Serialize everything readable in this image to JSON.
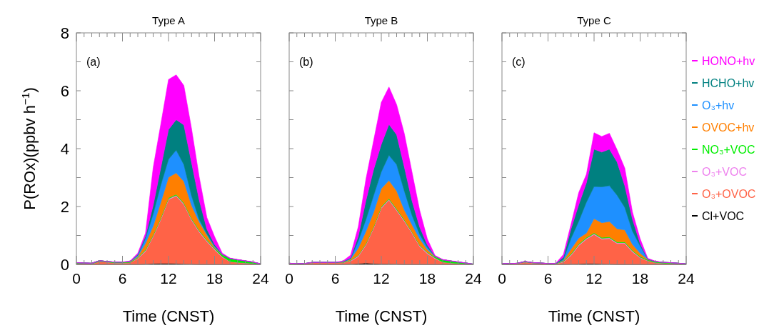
{
  "chart_data": [
    {
      "type": "area",
      "stacked": true,
      "title": "Type A",
      "xlabel": "Time (CNST)",
      "ylabel": "P(ROx)(ppbv h$^{−1}$)",
      "annotations": [
        "(a)"
      ],
      "x": [
        0,
        1,
        2,
        3,
        4,
        5,
        6,
        7,
        8,
        9,
        10,
        11,
        12,
        13,
        14,
        15,
        16,
        17,
        18,
        19,
        20,
        21,
        22,
        23,
        24
      ],
      "xlim": [
        0,
        24
      ],
      "xticks": [
        0,
        {
          "value": 1,
          "label": null
        },
        {
          "value": 2,
          "label": null
        },
        {
          "value": 3,
          "label": null
        },
        {
          "value": 4,
          "label": null
        },
        {
          "value": 5,
          "label": null
        },
        6,
        {
          "value": 7,
          "label": null
        },
        {
          "value": 8,
          "label": null
        },
        {
          "value": 9,
          "label": null
        },
        {
          "value": 10,
          "label": null
        },
        {
          "value": 11,
          "label": null
        },
        12,
        {
          "value": 13,
          "label": null
        },
        {
          "value": 14,
          "label": null
        },
        {
          "value": 15,
          "label": null
        },
        {
          "value": 16,
          "label": null
        },
        {
          "value": 17,
          "label": null
        },
        18,
        {
          "value": 19,
          "label": null
        },
        {
          "value": 20,
          "label": null
        },
        {
          "value": 21,
          "label": null
        },
        {
          "value": 22,
          "label": null
        },
        {
          "value": 23,
          "label": null
        },
        24
      ],
      "ylim": [
        0,
        8
      ],
      "yticks": [
        0,
        {
          "value": 1,
          "label": null
        },
        2,
        {
          "value": 3,
          "label": null
        },
        4,
        {
          "value": 5,
          "label": null
        },
        6,
        {
          "value": 7,
          "label": null
        },
        8
      ],
      "series": [
        {
          "color": "#000000",
          "values": [
            0,
            0,
            0,
            0,
            0,
            0,
            0,
            0,
            0,
            0.01,
            0.03,
            0.04,
            0.04,
            0.03,
            0.02,
            0.01,
            0,
            0,
            0,
            0,
            0,
            0,
            0,
            0,
            0
          ]
        },
        {
          "color": "#ff6347",
          "values": [
            0.03,
            0.03,
            0.02,
            0.1,
            0.08,
            0.05,
            0.05,
            0.06,
            0.2,
            0.44,
            0.93,
            1.51,
            2.2,
            2.33,
            2.05,
            1.52,
            1.12,
            0.79,
            0.5,
            0.25,
            0.1,
            0.07,
            0.05,
            0.03,
            0
          ]
        },
        {
          "color": "#ee82ee",
          "values": [
            0,
            0,
            0,
            0,
            0,
            0,
            0,
            0,
            0.02,
            0.03,
            0.03,
            0.03,
            0.03,
            0.03,
            0.03,
            0.03,
            0.03,
            0.03,
            0.03,
            0.02,
            0,
            0,
            0,
            0,
            0
          ]
        },
        {
          "color": "#00ee00",
          "values": [
            0.03,
            0.02,
            0.02,
            0.03,
            0.02,
            0.03,
            0.03,
            0.02,
            0.02,
            0.03,
            0.03,
            0.03,
            0.03,
            0.03,
            0.03,
            0.03,
            0.03,
            0.03,
            0.03,
            0.06,
            0.1,
            0.09,
            0.07,
            0.05,
            0.02
          ]
        },
        {
          "color": "#ff7f00",
          "values": [
            0,
            0,
            0,
            0,
            0,
            0,
            0,
            0.01,
            0.03,
            0.22,
            0.3,
            0.54,
            0.71,
            0.74,
            0.74,
            0.45,
            0.29,
            0.17,
            0.03,
            0.01,
            0,
            0,
            0,
            0,
            0
          ]
        },
        {
          "color": "#1e90ff",
          "values": [
            0,
            0,
            0,
            0,
            0,
            0,
            0,
            0.01,
            0.05,
            0.17,
            0.42,
            0.6,
            0.62,
            0.79,
            0.58,
            0.33,
            0.08,
            0.03,
            0.04,
            0.01,
            0,
            0,
            0,
            0,
            0
          ]
        },
        {
          "color": "#008080",
          "values": [
            0,
            0,
            0,
            0,
            0,
            0,
            0,
            0,
            0.03,
            0.08,
            0.3,
            0.6,
            1.03,
            1.05,
            1.37,
            1.15,
            0.67,
            0.17,
            0.06,
            0.01,
            0.01,
            0,
            0,
            0,
            0
          ]
        },
        {
          "color": "#ff00ff",
          "values": [
            0,
            0,
            0,
            0,
            0,
            0,
            0,
            0.02,
            0.04,
            0.1,
            1.3,
            1.5,
            1.73,
            1.55,
            1.36,
            1.17,
            0.8,
            0.4,
            0.27,
            0.03,
            0.01,
            0.01,
            0.01,
            0.01,
            0
          ]
        }
      ]
    },
    {
      "type": "area",
      "stacked": true,
      "title": "Type B",
      "xlabel": "Time (CNST)",
      "annotations": [
        "(b)"
      ],
      "tick_labels": "x",
      "x": [
        0,
        1,
        2,
        3,
        4,
        5,
        6,
        7,
        8,
        9,
        10,
        11,
        12,
        13,
        14,
        15,
        16,
        17,
        18,
        19,
        20,
        21,
        22,
        23,
        24
      ],
      "xlim": [
        0,
        24
      ],
      "xticks": [
        0,
        {
          "value": 1,
          "label": null
        },
        {
          "value": 2,
          "label": null
        },
        {
          "value": 3,
          "label": null
        },
        {
          "value": 4,
          "label": null
        },
        {
          "value": 5,
          "label": null
        },
        6,
        {
          "value": 7,
          "label": null
        },
        {
          "value": 8,
          "label": null
        },
        {
          "value": 9,
          "label": null
        },
        {
          "value": 10,
          "label": null
        },
        {
          "value": 11,
          "label": null
        },
        12,
        {
          "value": 13,
          "label": null
        },
        {
          "value": 14,
          "label": null
        },
        {
          "value": 15,
          "label": null
        },
        {
          "value": 16,
          "label": null
        },
        {
          "value": 17,
          "label": null
        },
        18,
        {
          "value": 19,
          "label": null
        },
        {
          "value": 20,
          "label": null
        },
        {
          "value": 21,
          "label": null
        },
        {
          "value": 22,
          "label": null
        },
        {
          "value": 23,
          "label": null
        },
        24
      ],
      "ylim": [
        0,
        8
      ],
      "yticks": [
        0,
        {
          "value": 1,
          "label": null
        },
        2,
        {
          "value": 3,
          "label": null
        },
        4,
        {
          "value": 5,
          "label": null
        },
        6,
        {
          "value": 7,
          "label": null
        },
        8
      ],
      "series": [
        {
          "color": "#000000",
          "values": [
            0,
            0,
            0,
            0,
            0,
            0,
            0,
            0,
            0.01,
            0.03,
            0.05,
            0.03,
            0.02,
            0.02,
            0.01,
            0,
            0,
            0,
            0,
            0,
            0,
            0,
            0,
            0,
            0
          ]
        },
        {
          "color": "#ff6347",
          "values": [
            0.02,
            0.02,
            0.02,
            0.06,
            0.06,
            0.06,
            0.06,
            0.06,
            0.1,
            0.24,
            0.62,
            1.22,
            1.92,
            2.2,
            1.85,
            1.49,
            1.08,
            0.62,
            0.37,
            0.2,
            0.08,
            0.05,
            0.03,
            0.02,
            0
          ]
        },
        {
          "color": "#ee82ee",
          "values": [
            0,
            0,
            0,
            0,
            0,
            0,
            0,
            0,
            0.02,
            0.03,
            0.03,
            0.03,
            0.03,
            0.03,
            0.03,
            0.03,
            0.03,
            0.03,
            0.03,
            0.02,
            0,
            0,
            0,
            0,
            0
          ]
        },
        {
          "color": "#00ee00",
          "values": [
            0.02,
            0.01,
            0.01,
            0.01,
            0.01,
            0.01,
            0.01,
            0.01,
            0.02,
            0.02,
            0.02,
            0.02,
            0.03,
            0.03,
            0.03,
            0.03,
            0.02,
            0.02,
            0.02,
            0.04,
            0.08,
            0.07,
            0.05,
            0.03,
            0.01
          ]
        },
        {
          "color": "#ff7f00",
          "values": [
            0,
            0,
            0,
            0,
            0,
            0,
            0,
            0.01,
            0.03,
            0.24,
            0.42,
            0.5,
            0.62,
            0.62,
            0.62,
            0.33,
            0.24,
            0.21,
            0.09,
            0.01,
            0,
            0,
            0,
            0,
            0
          ]
        },
        {
          "color": "#1e90ff",
          "values": [
            0,
            0,
            0,
            0,
            0,
            0,
            0,
            0.01,
            0.02,
            0.25,
            0.41,
            0.58,
            0.58,
            0.87,
            0.91,
            0.66,
            0.33,
            0.16,
            0.08,
            0.01,
            0,
            0,
            0,
            0,
            0
          ]
        },
        {
          "color": "#008080",
          "values": [
            0,
            0,
            0,
            0,
            0,
            0,
            0,
            0.01,
            0.03,
            0.16,
            0.66,
            0.9,
            0.95,
            1.07,
            1.03,
            0.83,
            0.5,
            0.25,
            0.08,
            0.01,
            0,
            0,
            0,
            0,
            0
          ]
        },
        {
          "color": "#ff00ff",
          "values": [
            0,
            0,
            0,
            0,
            0,
            0,
            0,
            0.02,
            0.09,
            0.33,
            0.74,
            1.0,
            1.45,
            1.29,
            1.04,
            1.15,
            0.99,
            0.58,
            0.21,
            0.02,
            0.01,
            0.01,
            0.01,
            0,
            0
          ]
        }
      ]
    },
    {
      "type": "area",
      "stacked": true,
      "title": "Type C",
      "xlabel": "Time (CNST)",
      "annotations": [
        "(c)"
      ],
      "tick_labels": "x",
      "legend": "right",
      "x": [
        0,
        1,
        2,
        3,
        4,
        5,
        6,
        7,
        8,
        9,
        10,
        11,
        12,
        13,
        14,
        15,
        16,
        17,
        18,
        19,
        20,
        21,
        22,
        23,
        24
      ],
      "xlim": [
        0,
        24
      ],
      "xticks": [
        0,
        {
          "value": 1,
          "label": null
        },
        {
          "value": 2,
          "label": null
        },
        {
          "value": 3,
          "label": null
        },
        {
          "value": 4,
          "label": null
        },
        {
          "value": 5,
          "label": null
        },
        6,
        {
          "value": 7,
          "label": null
        },
        {
          "value": 8,
          "label": null
        },
        {
          "value": 9,
          "label": null
        },
        {
          "value": 10,
          "label": null
        },
        {
          "value": 11,
          "label": null
        },
        12,
        {
          "value": 13,
          "label": null
        },
        {
          "value": 14,
          "label": null
        },
        {
          "value": 15,
          "label": null
        },
        {
          "value": 16,
          "label": null
        },
        {
          "value": 17,
          "label": null
        },
        18,
        {
          "value": 19,
          "label": null
        },
        {
          "value": 20,
          "label": null
        },
        {
          "value": 21,
          "label": null
        },
        {
          "value": 22,
          "label": null
        },
        {
          "value": 23,
          "label": null
        },
        24
      ],
      "ylim": [
        0,
        8
      ],
      "yticks": [
        0,
        {
          "value": 1,
          "label": null
        },
        2,
        {
          "value": 3,
          "label": null
        },
        4,
        {
          "value": 5,
          "label": null
        },
        6,
        {
          "value": 7,
          "label": null
        },
        8
      ],
      "series": [
        {
          "name": "Cl+VOC",
          "color": "#000000",
          "values": [
            0,
            0,
            0,
            0,
            0,
            0,
            0,
            0,
            0,
            0.01,
            0.02,
            0.03,
            0.03,
            0.02,
            0.01,
            0,
            0,
            0,
            0,
            0,
            0,
            0,
            0,
            0,
            0
          ]
        },
        {
          "name": "O₃+OVOC",
          "color": "#ff6347",
          "values": [
            0.02,
            0.02,
            0.03,
            0.08,
            0.05,
            0.04,
            0.02,
            0.02,
            0.08,
            0.3,
            0.63,
            0.84,
            1.0,
            0.85,
            0.88,
            0.72,
            0.72,
            0.43,
            0.23,
            0.12,
            0.06,
            0.04,
            0.03,
            0.02,
            0.01
          ]
        },
        {
          "name": "O₃+VOC",
          "color": "#ee82ee",
          "values": [
            0,
            0,
            0,
            0,
            0,
            0,
            0,
            0,
            0.02,
            0.03,
            0.03,
            0.03,
            0.03,
            0.03,
            0.03,
            0.03,
            0.03,
            0.03,
            0.02,
            0.01,
            0,
            0,
            0,
            0,
            0
          ]
        },
        {
          "name": "NO₃+VOC",
          "color": "#00ee00",
          "values": [
            0.01,
            0.01,
            0.01,
            0.02,
            0.01,
            0.01,
            0.01,
            0.01,
            0.02,
            0.03,
            0.03,
            0.03,
            0.03,
            0.03,
            0.03,
            0.03,
            0.03,
            0.03,
            0.03,
            0.03,
            0.04,
            0.03,
            0.03,
            0.02,
            0.01
          ]
        },
        {
          "name": "OVOC+hv",
          "color": "#ff7f00",
          "values": [
            0,
            0,
            0,
            0,
            0,
            0,
            0,
            0,
            0.02,
            0.16,
            0.2,
            0.15,
            0.49,
            0.51,
            0.53,
            0.45,
            0.41,
            0.2,
            0.11,
            0.01,
            0,
            0,
            0,
            0,
            0
          ]
        },
        {
          "name": "O₃+hv",
          "color": "#1e90ff",
          "values": [
            0,
            0,
            0,
            0,
            0,
            0,
            0,
            0,
            0.03,
            0.37,
            0.58,
            1.07,
            1.11,
            1.24,
            1.24,
            1.16,
            0.78,
            0.46,
            0.25,
            0.01,
            0,
            0,
            0,
            0,
            0
          ]
        },
        {
          "name": "HCHO+hv",
          "color": "#008080",
          "values": [
            0,
            0,
            0,
            0,
            0,
            0,
            0,
            0,
            0.08,
            0.33,
            0.57,
            0.67,
            1.29,
            1.2,
            1.26,
            1.15,
            0.75,
            0.41,
            0.08,
            0.01,
            0,
            0,
            0,
            0,
            0
          ]
        },
        {
          "name": "HONO+hv",
          "color": "#ff00ff",
          "values": [
            0,
            0,
            0,
            0,
            0,
            0,
            0,
            0.01,
            0.09,
            0.16,
            0.42,
            0.29,
            0.57,
            0.54,
            0.55,
            0.42,
            0.61,
            0.25,
            0.17,
            0.02,
            0.01,
            0,
            0,
            0,
            0
          ]
        }
      ]
    }
  ]
}
